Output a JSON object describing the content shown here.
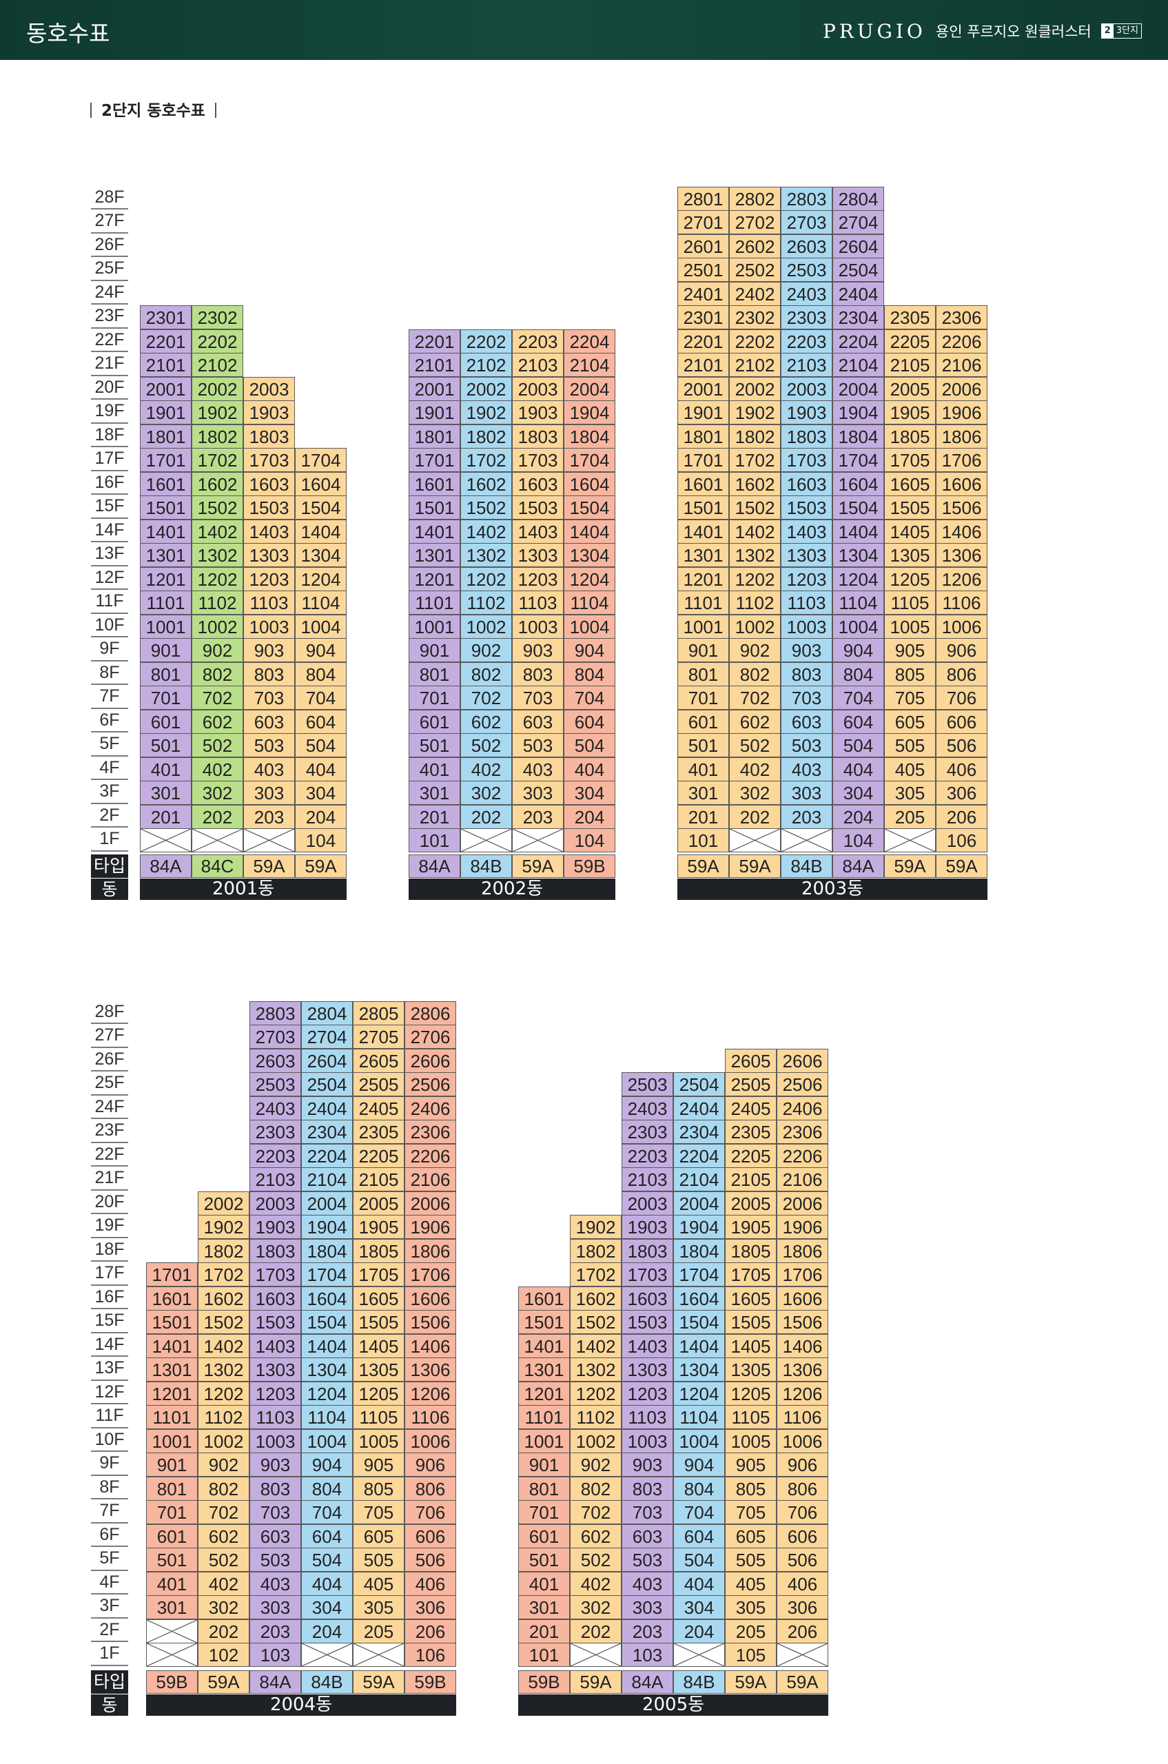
{
  "header": {
    "title": "동호수표",
    "brand_logo": "PRUGIO",
    "brand_name": "용인 푸르지오 원클러스터",
    "badge_a": "2",
    "badge_b": "3단지"
  },
  "section_title": "2단지 동호수표",
  "legend": {
    "type_label": "타입",
    "dong_label": "동"
  },
  "colors": {
    "84A": "#c4aee0",
    "84B": "#a9d9f1",
    "84C": "#badf8a",
    "59A": "#fbd79a",
    "59B": "#f7b69f"
  },
  "floor_labels": [
    "28F",
    "27F",
    "26F",
    "25F",
    "24F",
    "23F",
    "22F",
    "21F",
    "20F",
    "19F",
    "18F",
    "17F",
    "16F",
    "15F",
    "14F",
    "13F",
    "12F",
    "11F",
    "10F",
    "9F",
    "8F",
    "7F",
    "6F",
    "5F",
    "4F",
    "3F",
    "2F",
    "1F"
  ],
  "buildings": [
    {
      "name": "2001동",
      "types": [
        "84A",
        "84C",
        "59A",
        "59A"
      ],
      "top_floors": [
        23,
        23,
        20,
        17
      ],
      "first_floor": [
        null,
        null,
        null,
        "104"
      ]
    },
    {
      "name": "2002동",
      "types": [
        "84A",
        "84B",
        "59A",
        "59B"
      ],
      "top_floors": [
        22,
        22,
        22,
        22
      ],
      "first_floor": [
        "101",
        null,
        null,
        "104"
      ]
    },
    {
      "name": "2003동",
      "types": [
        "59A",
        "59A",
        "84B",
        "84A",
        "59A",
        "59A"
      ],
      "top_floors": [
        28,
        28,
        28,
        28,
        23,
        23
      ],
      "first_floor": [
        "101",
        null,
        null,
        "104",
        null,
        "106"
      ]
    },
    {
      "name": "2004동",
      "types": [
        "59B",
        "59A",
        "84A",
        "84B",
        "59A",
        "59B"
      ],
      "top_floors": [
        17,
        20,
        28,
        28,
        28,
        28
      ],
      "first_floor": [
        null,
        "102",
        "103",
        null,
        null,
        "106"
      ],
      "empty_second_floor": [
        true,
        false,
        false,
        false,
        false,
        false
      ]
    },
    {
      "name": "2005동",
      "types": [
        "59B",
        "59A",
        "84A",
        "84B",
        "59A",
        "59A"
      ],
      "top_floors": [
        16,
        19,
        25,
        25,
        26,
        26
      ],
      "first_floor": [
        "101",
        null,
        "103",
        null,
        "105",
        null
      ]
    }
  ]
}
